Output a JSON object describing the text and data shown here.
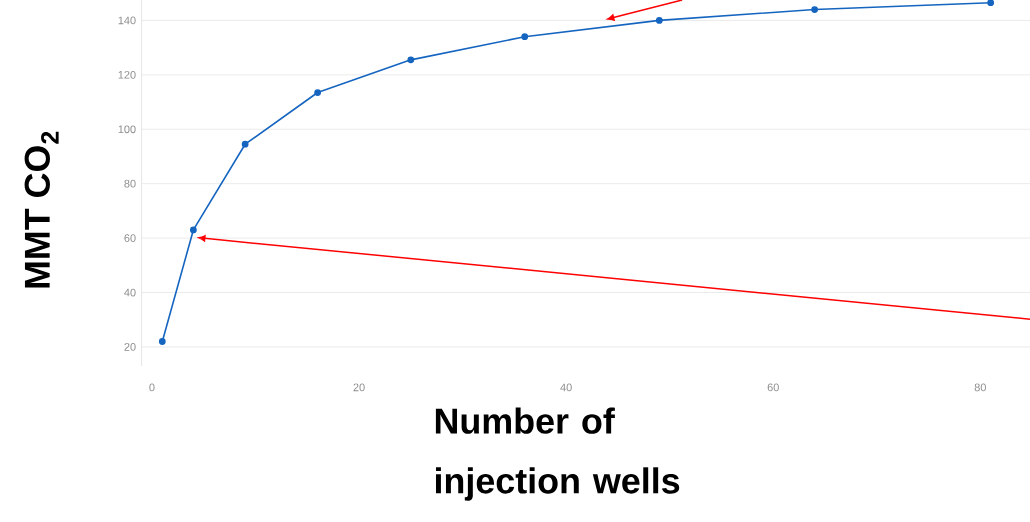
{
  "chart_data": {
    "type": "line",
    "xlabel": "Number of injection wells",
    "ylabel": "MMT CO$_{2}$",
    "x": [
      1,
      4,
      9,
      16,
      25,
      36,
      49,
      64,
      81
    ],
    "series": [
      {
        "color": "#1565c0",
        "values": [
          22,
          63,
          94.5,
          113.5,
          125.5,
          134,
          140,
          144,
          146.5
        ]
      }
    ],
    "xlim": [
      -1,
      84.8
    ],
    "ylim": [
      13,
      147.5
    ],
    "xticks": [
      0,
      20,
      40,
      60,
      80
    ],
    "yticks": [
      20,
      40,
      60,
      80,
      100,
      120,
      140
    ],
    "grid": "y",
    "marker": "circle",
    "line_style": "solid"
  }
}
